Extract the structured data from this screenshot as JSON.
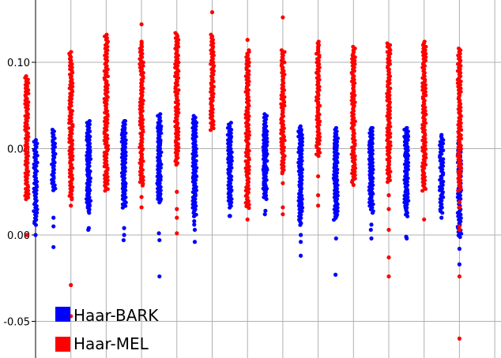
{
  "chart_data": {
    "type": "scatter",
    "title": "",
    "xlabel": "",
    "ylabel": "",
    "ylim": [
      -0.07,
      0.135
    ],
    "yticks": [
      -0.05,
      0.0,
      0.05,
      0.1
    ],
    "ytick_labels": [
      "-0.05",
      "0.00",
      "0.05",
      "0.10"
    ],
    "grid": true,
    "vertical_gridlines": 13,
    "legend": {
      "placement": "bottom-left",
      "entries": [
        {
          "label": "Haar-BARK",
          "color": "#0000ff"
        },
        {
          "label": "Haar-MEL",
          "color": "#ff0000"
        }
      ]
    },
    "groups": 14,
    "series": [
      {
        "name": "Haar-BARK",
        "color": "#0000ff",
        "columns": [
          {
            "group": 1,
            "offset": 0,
            "lo": 0.005,
            "hi": 0.055,
            "outliers": [
              0.0
            ]
          },
          {
            "group": 2,
            "offset": -1,
            "lo": 0.025,
            "hi": 0.061,
            "outliers": [
              0.01,
              0.005,
              -0.007
            ]
          },
          {
            "group": 2,
            "offset": 1,
            "lo": 0.015,
            "hi": 0.061,
            "outliers": [
              0.003
            ]
          },
          {
            "group": 3,
            "offset": -1,
            "lo": 0.012,
            "hi": 0.066,
            "outliers": [
              0.004
            ]
          },
          {
            "group": 3,
            "offset": 1,
            "lo": 0.02,
            "hi": 0.066,
            "outliers": [
              -0.003
            ]
          },
          {
            "group": 4,
            "offset": -1,
            "lo": 0.015,
            "hi": 0.066,
            "outliers": [
              0.004,
              0.0
            ]
          },
          {
            "group": 4,
            "offset": 1,
            "lo": 0.018,
            "hi": 0.065,
            "outliers": [
              0.001
            ]
          },
          {
            "group": 5,
            "offset": -1,
            "lo": 0.02,
            "hi": 0.07,
            "outliers": [
              -0.003,
              -0.024
            ]
          },
          {
            "group": 5,
            "offset": 1,
            "lo": 0.015,
            "hi": 0.069,
            "outliers": [
              0.008,
              0.006
            ]
          },
          {
            "group": 6,
            "offset": -1,
            "lo": 0.01,
            "hi": 0.065,
            "outliers": [
              0.003,
              -0.004
            ]
          },
          {
            "group": 6,
            "offset": 1,
            "lo": 0.018,
            "hi": 0.065,
            "outliers": [
              0.011
            ]
          },
          {
            "group": 7,
            "offset": -1,
            "lo": 0.015,
            "hi": 0.062,
            "outliers": [
              0.011
            ]
          },
          {
            "group": 7,
            "offset": 1,
            "lo": 0.02,
            "hi": 0.062,
            "outliers": [
              0.012
            ]
          },
          {
            "group": 8,
            "offset": -1,
            "lo": 0.02,
            "hi": 0.07,
            "outliers": [
              0.014
            ]
          },
          {
            "group": 8,
            "offset": 1,
            "lo": 0.012,
            "hi": 0.063,
            "outliers": [
              0.011
            ]
          },
          {
            "group": 9,
            "offset": -1,
            "lo": 0.005,
            "hi": 0.061,
            "outliers": [
              0.0,
              -0.004,
              -0.012
            ]
          },
          {
            "group": 9,
            "offset": 1,
            "lo": 0.008,
            "hi": 0.06,
            "outliers": [
              -0.023
            ]
          },
          {
            "group": 10,
            "offset": -1,
            "lo": 0.01,
            "hi": 0.062,
            "outliers": [
              -0.002
            ]
          },
          {
            "group": 10,
            "offset": 1,
            "lo": 0.015,
            "hi": 0.062,
            "outliers": [
              0.003
            ]
          },
          {
            "group": 11,
            "offset": -1,
            "lo": 0.012,
            "hi": 0.062,
            "outliers": [
              0.006,
              -0.002
            ]
          },
          {
            "group": 11,
            "offset": 1,
            "lo": 0.01,
            "hi": 0.062,
            "outliers": [
              -0.001
            ]
          },
          {
            "group": 12,
            "offset": -1,
            "lo": 0.015,
            "hi": 0.062,
            "outliers": [
              -0.002
            ]
          },
          {
            "group": 12,
            "offset": 1,
            "lo": 0.012,
            "hi": 0.058,
            "outliers": [
              0.01
            ]
          },
          {
            "group": 13,
            "offset": 0,
            "lo": -0.002,
            "hi": 0.053,
            "outliers": [
              -0.008,
              -0.017
            ]
          }
        ]
      },
      {
        "name": "Haar-MEL",
        "color": "#ff0000",
        "columns": [
          {
            "group": 1,
            "offset": -0.5,
            "lo": 0.02,
            "hi": 0.092,
            "outliers": [
              0.0
            ]
          },
          {
            "group": 2,
            "offset": 0,
            "lo": 0.02,
            "hi": 0.106,
            "outliers": [
              0.017,
              -0.029,
              -0.047
            ]
          },
          {
            "group": 3,
            "offset": 0,
            "lo": 0.025,
            "hi": 0.116,
            "outliers": []
          },
          {
            "group": 4,
            "offset": 0,
            "lo": 0.028,
            "hi": 0.112,
            "outliers": [
              0.122,
              0.022,
              0.016
            ]
          },
          {
            "group": 5,
            "offset": 0,
            "lo": 0.04,
            "hi": 0.117,
            "outliers": [
              0.025,
              0.015,
              0.01,
              0.001
            ]
          },
          {
            "group": 6,
            "offset": 0,
            "lo": 0.06,
            "hi": 0.116,
            "outliers": [
              0.129
            ]
          },
          {
            "group": 7,
            "offset": 0,
            "lo": 0.015,
            "hi": 0.107,
            "outliers": [
              0.113,
              0.009
            ]
          },
          {
            "group": 8,
            "offset": 0,
            "lo": 0.035,
            "hi": 0.107,
            "outliers": [
              0.126,
              0.03,
              0.016,
              0.012
            ]
          },
          {
            "group": 9,
            "offset": 0,
            "lo": 0.045,
            "hi": 0.112,
            "outliers": [
              0.034,
              0.023,
              0.017
            ]
          },
          {
            "group": 10,
            "offset": 0,
            "lo": 0.03,
            "hi": 0.109,
            "outliers": [
              0.029
            ]
          },
          {
            "group": 11,
            "offset": 0,
            "lo": 0.03,
            "hi": 0.111,
            "outliers": [
              0.023,
              0.015,
              0.003,
              -0.013,
              -0.024
            ]
          },
          {
            "group": 12,
            "offset": 0,
            "lo": 0.025,
            "hi": 0.112,
            "outliers": [
              0.009
            ]
          },
          {
            "group": 13,
            "offset": 0,
            "lo": 0.025,
            "hi": 0.108,
            "outliers": [
              0.019,
              0.016,
              0.005,
              0.003,
              -0.024,
              -0.06
            ]
          }
        ]
      }
    ]
  }
}
